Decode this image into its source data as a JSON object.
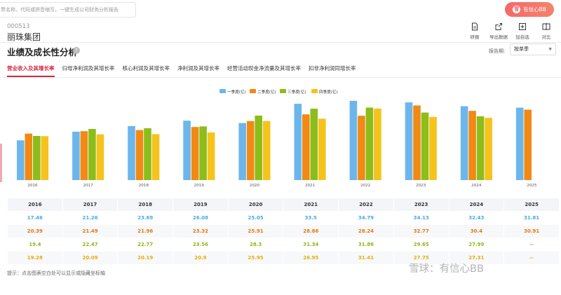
{
  "search": {
    "placeholder": "票名称、代码或拼音缩写，一键生成公司财务分析报告"
  },
  "brand": {
    "label": "有信心BB",
    "logo": "雪"
  },
  "stock": {
    "code": "000513",
    "name": "丽珠集团"
  },
  "section": {
    "title": "业绩及成长性分析",
    "help": "?"
  },
  "toolbar": [
    {
      "label": "研报",
      "icon": "document-icon"
    },
    {
      "label": "导出数据",
      "icon": "export-icon"
    },
    {
      "label": "加自选",
      "icon": "add-icon"
    },
    {
      "label": "对比",
      "icon": "compare-icon"
    }
  ],
  "period": {
    "label": "报告期:",
    "value": "按单季"
  },
  "tabs": [
    "营业收入及其增长率",
    "归母净利润及其增长率",
    "核心利润及其增长率",
    "净利润及其增长率",
    "经营活动现金净流量及其增长率",
    "扣非净利润同增长率"
  ],
  "colors": {
    "q1": "#6cb6ec",
    "q2": "#f08a14",
    "q3": "#8cbd1b",
    "q4": "#f5c31c",
    "accent": "#d5293f"
  },
  "chart_data": {
    "type": "bar",
    "categories": [
      "2016",
      "2017",
      "2018",
      "2019",
      "2020",
      "2021",
      "2022",
      "2023",
      "2024",
      "2025"
    ],
    "series": [
      {
        "name": "一季度(亿)",
        "values": [
          17.46,
          21.26,
          23.69,
          26.08,
          25.05,
          33.5,
          34.79,
          34.13,
          32.43,
          31.81
        ]
      },
      {
        "name": "二季度(亿)",
        "values": [
          20.39,
          21.49,
          21.96,
          23.32,
          25.91,
          28.86,
          28.24,
          32.77,
          30.4,
          30.91
        ]
      },
      {
        "name": "三季度(亿)",
        "values": [
          19.4,
          22.47,
          22.77,
          23.56,
          28.3,
          31.34,
          31.86,
          29.65,
          27.99,
          null
        ]
      },
      {
        "name": "四季度(亿)",
        "values": [
          19.28,
          20.09,
          20.19,
          20.9,
          25.95,
          26.95,
          31.41,
          27.75,
          27.31,
          null
        ]
      }
    ],
    "ylim": [
      0,
      36
    ],
    "legend": "top-center",
    "grid": false
  },
  "table": {
    "headers": [
      "2016",
      "2017",
      "2018",
      "2019",
      "2020",
      "2021",
      "2022",
      "2023",
      "2024",
      "2025"
    ],
    "rows": [
      [
        "17.46",
        "21.26",
        "23.69",
        "26.08",
        "25.05",
        "33.5",
        "34.79",
        "34.13",
        "32.43",
        "31.81"
      ],
      [
        "20.39",
        "21.49",
        "21.96",
        "23.32",
        "25.91",
        "28.86",
        "28.24",
        "32.77",
        "30.4",
        "30.91"
      ],
      [
        "19.4",
        "22.47",
        "22.77",
        "23.56",
        "28.3",
        "31.34",
        "31.86",
        "29.65",
        "27.99",
        "--"
      ],
      [
        "19.28",
        "20.09",
        "20.19",
        "20.9",
        "25.95",
        "26.95",
        "31.41",
        "27.75",
        "27.31",
        "--"
      ]
    ]
  },
  "tip": "提示：点击图表空白处可以显示或隐藏坐标轴",
  "watermark": "雪球：有信心BB"
}
